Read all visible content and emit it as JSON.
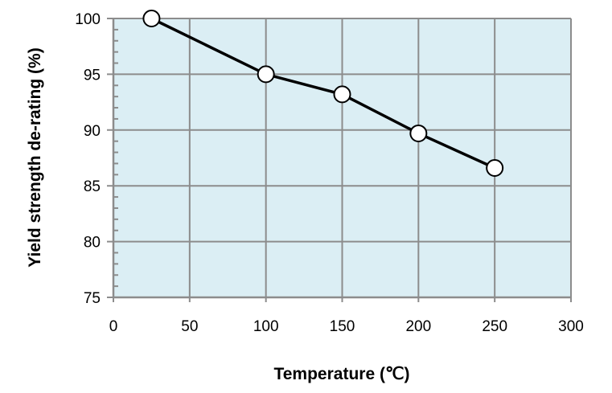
{
  "chart_data": {
    "type": "line",
    "title": "",
    "xlabel": "Temperature (℃)",
    "ylabel": "Yield strength de-rating (%)",
    "xlim": [
      0,
      300
    ],
    "ylim": [
      75,
      100
    ],
    "xticks": [
      0,
      50,
      100,
      150,
      200,
      250,
      300
    ],
    "yticks": [
      75,
      80,
      85,
      90,
      95,
      100
    ],
    "y_minor_step": 1,
    "grid": true,
    "series": [
      {
        "x": [
          25,
          100,
          150,
          200,
          250
        ],
        "values": [
          100,
          95,
          93.2,
          89.7,
          86.6
        ]
      }
    ],
    "colors": {
      "plot_background": "#dbeef4",
      "grid": "#8c8c8c",
      "line": "#000000",
      "marker_fill": "#ffffff"
    }
  }
}
